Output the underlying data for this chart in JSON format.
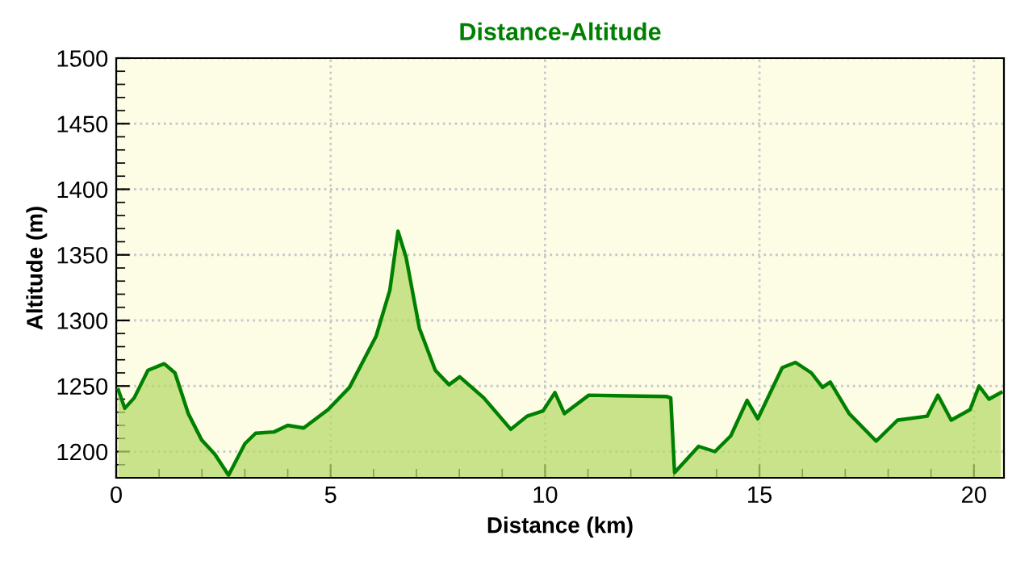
{
  "chart_data": {
    "type": "area",
    "title": "Distance-Altitude",
    "xlabel": "Distance (km)",
    "ylabel": "Altitude (m)",
    "xlim": [
      0,
      20.7
    ],
    "xticks": [
      0,
      5,
      10,
      15,
      20
    ],
    "ylim": [
      1180,
      1500
    ],
    "yticks": [
      1200,
      1250,
      1300,
      1350,
      1400,
      1450,
      1500
    ],
    "grid": true,
    "line_style": "solid",
    "series": [
      {
        "color": "#008000",
        "x": [
          0.05,
          0.2,
          0.42,
          0.74,
          1.12,
          1.37,
          1.68,
          1.99,
          2.3,
          2.62,
          3.0,
          3.25,
          3.68,
          4.0,
          4.37,
          4.94,
          5.44,
          6.06,
          6.38,
          6.57,
          6.76,
          7.07,
          7.44,
          7.76,
          8.01,
          8.57,
          9.2,
          9.58,
          9.95,
          10.23,
          10.45,
          11.02,
          12.83,
          12.93,
          13.02,
          13.58,
          13.96,
          14.33,
          14.71,
          14.96,
          15.53,
          15.84,
          16.21,
          16.47,
          16.65,
          17.09,
          17.72,
          18.22,
          18.91,
          19.16,
          19.47,
          19.91,
          20.12,
          20.35,
          20.63
        ],
        "values": [
          1247,
          1233,
          1241,
          1262,
          1267,
          1260,
          1229,
          1209,
          1198,
          1182,
          1206,
          1214,
          1215,
          1220,
          1218,
          1232,
          1249,
          1288,
          1323,
          1368,
          1348,
          1294,
          1262,
          1251,
          1257,
          1241,
          1217,
          1227,
          1231,
          1245,
          1229,
          1243,
          1242,
          1241,
          1184,
          1204,
          1200,
          1212,
          1239,
          1225,
          1264,
          1268,
          1260,
          1249,
          1253,
          1229,
          1208,
          1224,
          1227,
          1243,
          1224,
          1232,
          1250,
          1240,
          1245
        ]
      }
    ]
  }
}
